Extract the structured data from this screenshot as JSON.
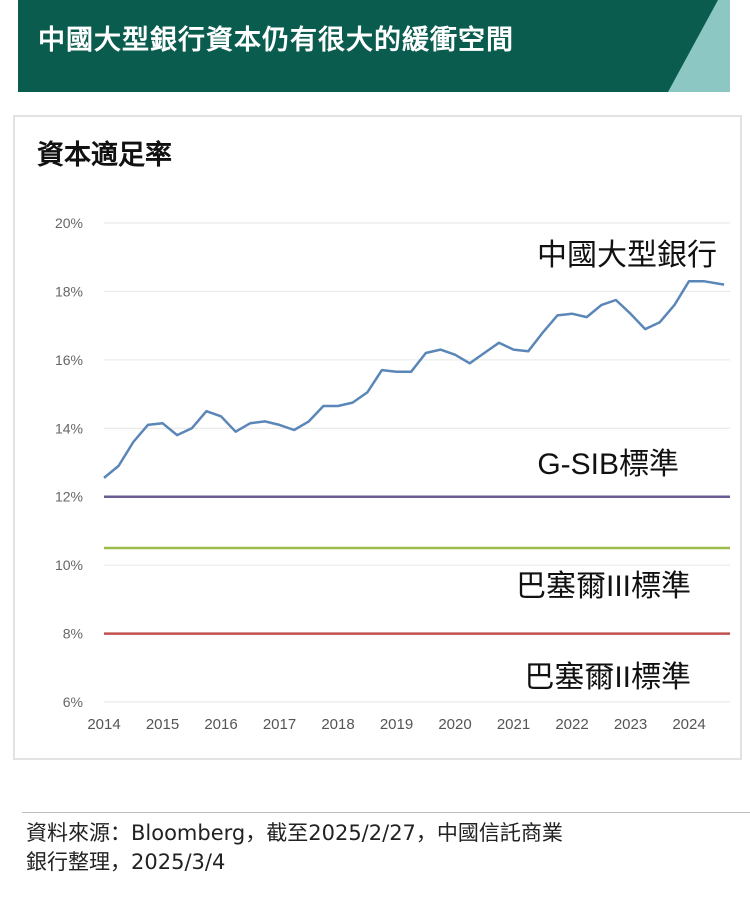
{
  "banner": {
    "title": "中國大型銀行資本仍有很大的緩衝空間",
    "background_color": "#0a5c4e",
    "stripe_color": "#8cc7c4"
  },
  "chart_data": {
    "type": "line",
    "title": "資本適足率",
    "xlabel": "",
    "ylabel": "",
    "xlim": [
      2014,
      2024.7
    ],
    "ylim": [
      6,
      20
    ],
    "y_ticks": [
      6,
      8,
      10,
      12,
      14,
      16,
      18,
      20
    ],
    "y_tick_labels": [
      "6%",
      "8%",
      "10%",
      "12%",
      "14%",
      "16%",
      "18%",
      "20%"
    ],
    "x_ticks": [
      2014,
      2015,
      2016,
      2017,
      2018,
      2019,
      2020,
      2021,
      2022,
      2023,
      2024
    ],
    "x_tick_labels": [
      "2014",
      "2015",
      "2016",
      "2017",
      "2018",
      "2019",
      "2020",
      "2021",
      "2022",
      "2023",
      "2024"
    ],
    "grid": "horizontal",
    "legend": "none",
    "series": [
      {
        "name": "中國大型銀行",
        "color": "#5a86b8",
        "x": [
          2014.0,
          2014.25,
          2014.5,
          2014.75,
          2015.0,
          2015.25,
          2015.5,
          2015.75,
          2016.0,
          2016.25,
          2016.5,
          2016.75,
          2017.0,
          2017.25,
          2017.5,
          2017.75,
          2018.0,
          2018.25,
          2018.5,
          2018.75,
          2019.0,
          2019.25,
          2019.5,
          2019.75,
          2020.0,
          2020.25,
          2020.5,
          2020.75,
          2021.0,
          2021.25,
          2021.5,
          2021.75,
          2022.0,
          2022.25,
          2022.5,
          2022.75,
          2023.0,
          2023.25,
          2023.5,
          2023.75,
          2024.0,
          2024.25,
          2024.6
        ],
        "y": [
          12.55,
          12.9,
          13.6,
          14.1,
          14.15,
          13.8,
          14.0,
          14.5,
          14.35,
          13.9,
          14.15,
          14.2,
          14.1,
          13.95,
          14.2,
          14.65,
          14.65,
          14.75,
          15.05,
          15.7,
          15.65,
          15.65,
          16.2,
          16.3,
          16.15,
          15.9,
          16.2,
          16.5,
          16.3,
          16.25,
          16.8,
          17.3,
          17.35,
          17.25,
          17.6,
          17.75,
          17.35,
          16.9,
          17.1,
          17.6,
          18.3,
          18.3,
          18.2
        ]
      },
      {
        "name": "G-SIB標準",
        "color": "#6a5c91",
        "y_constant": 12
      },
      {
        "name": "巴塞爾III標準",
        "color": "#9cbd4c",
        "y_constant": 10.5
      },
      {
        "name": "巴塞爾II標準",
        "color": "#c0504d",
        "y_constant": 8
      }
    ],
    "annotations": [
      "中國大型銀行",
      "G-SIB標準",
      "巴塞爾III標準",
      "巴塞爾II標準"
    ]
  },
  "source": {
    "line1": "資料來源：Bloomberg，截至2025/2/27，中國信託商業",
    "line2": "銀行整理，2025/3/4"
  }
}
